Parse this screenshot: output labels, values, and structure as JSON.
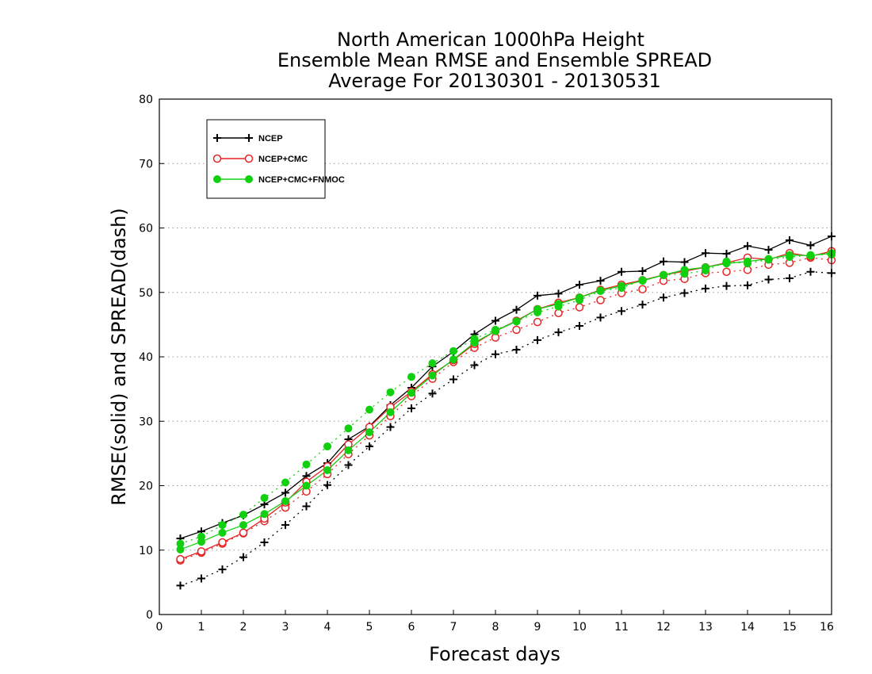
{
  "chart_data": {
    "type": "line",
    "title": [
      "North American 1000hPa Height",
      "Ensemble Mean RMSE and Ensemble SPREAD",
      "Average For 20130301 - 20130531"
    ],
    "xlabel": "Forecast days",
    "ylabel": "RMSE(solid) and SPREAD(dash)",
    "xlim": [
      0,
      16
    ],
    "ylim": [
      0,
      80
    ],
    "xticks": [
      0,
      1,
      2,
      3,
      4,
      5,
      6,
      7,
      8,
      9,
      10,
      11,
      12,
      13,
      14,
      15,
      16
    ],
    "yticks": [
      0,
      10,
      20,
      30,
      40,
      50,
      60,
      70,
      80
    ],
    "grid": "horizontal dotted",
    "legend_position": "top-left",
    "x": [
      0.5,
      1,
      1.5,
      2,
      2.5,
      3,
      3.5,
      4,
      4.5,
      5,
      5.5,
      6,
      6.5,
      7,
      7.5,
      8,
      8.5,
      9,
      9.5,
      10,
      10.5,
      11,
      11.5,
      12,
      12.5,
      13,
      13.5,
      14,
      14.5,
      15,
      15.5,
      16
    ],
    "series": [
      {
        "name": "NCEP",
        "color": "#000000",
        "marker": "plus",
        "rmse": [
          11.8,
          12.9,
          14.2,
          15.4,
          17.1,
          18.9,
          21.5,
          23.5,
          27.2,
          29.2,
          32.5,
          35.2,
          38.5,
          40.8,
          43.5,
          45.6,
          47.3,
          49.5,
          49.8,
          51.2,
          51.8,
          53.2,
          53.3,
          54.8,
          54.7,
          56.1,
          56.0,
          57.2,
          56.6,
          58.1,
          57.3,
          58.7
        ],
        "spread": [
          4.5,
          5.6,
          7.0,
          8.9,
          11.2,
          13.9,
          16.8,
          20.1,
          23.2,
          26.1,
          29.1,
          32.0,
          34.3,
          36.5,
          38.7,
          40.4,
          41.1,
          42.6,
          43.8,
          44.8,
          46.1,
          47.1,
          48.1,
          49.2,
          49.9,
          50.6,
          51.0,
          51.1,
          52.0,
          52.2,
          53.2,
          53.0
        ]
      },
      {
        "name": "NCEP+CMC",
        "color": "#e52525",
        "marker": "open-circle",
        "rmse": [
          8.6,
          9.8,
          11.2,
          12.7,
          14.9,
          17.4,
          20.6,
          23.0,
          26.4,
          29.1,
          32.2,
          34.6,
          37.3,
          39.5,
          42.0,
          44.0,
          45.6,
          47.4,
          48.4,
          49.2,
          50.4,
          51.2,
          51.9,
          52.7,
          53.3,
          53.9,
          54.6,
          55.4,
          55.1,
          56.1,
          55.6,
          56.4
        ],
        "spread": [
          8.4,
          9.6,
          11.0,
          12.6,
          14.5,
          16.6,
          19.1,
          21.8,
          24.9,
          27.8,
          30.8,
          33.9,
          36.6,
          39.2,
          41.4,
          43.0,
          44.2,
          45.4,
          46.8,
          47.7,
          48.8,
          49.9,
          50.5,
          51.8,
          52.1,
          53.0,
          53.2,
          53.5,
          54.3,
          54.6,
          55.4,
          55.0
        ]
      },
      {
        "name": "NCEP+CMC+FNMOC",
        "color": "#10d010",
        "marker": "filled-circle",
        "rmse": [
          10.1,
          11.3,
          12.7,
          13.9,
          15.6,
          17.6,
          20.0,
          22.4,
          25.5,
          28.3,
          31.4,
          34.4,
          37.1,
          39.6,
          42.2,
          44.0,
          45.5,
          47.4,
          48.2,
          49.2,
          50.3,
          51.0,
          51.8,
          52.7,
          53.5,
          53.9,
          54.5,
          54.8,
          55.2,
          55.8,
          55.7,
          56.1
        ],
        "spread": [
          11.0,
          12.1,
          13.9,
          15.5,
          18.1,
          20.5,
          23.3,
          26.1,
          28.9,
          31.8,
          34.5,
          36.9,
          39.0,
          40.9,
          42.8,
          44.2,
          45.5,
          46.9,
          47.8,
          48.8,
          50.2,
          50.7,
          51.9,
          52.7,
          52.9,
          53.4,
          54.8,
          54.5,
          55.1,
          55.5,
          55.8,
          55.9
        ]
      }
    ]
  }
}
